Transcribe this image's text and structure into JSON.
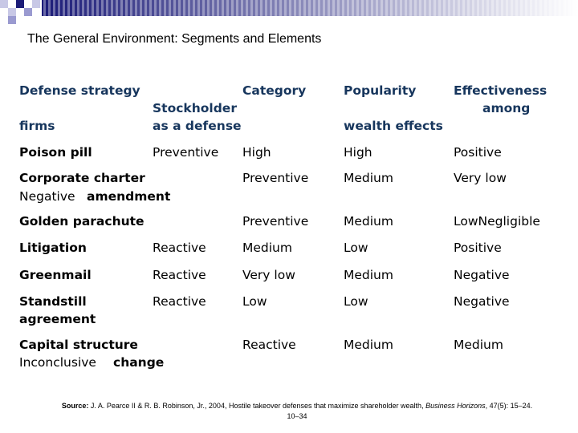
{
  "header": {
    "title": "The General Environment: Segments and Elements"
  },
  "table": {
    "head": {
      "defense_strategy": "Defense strategy",
      "category": "Category",
      "popularity": "Popularity",
      "effectiveness": "Effectiveness",
      "among": "among",
      "stockholder": "Stockholder",
      "as_a_defense": "as a defense",
      "firms": "firms",
      "wealth_effects": "wealth effects"
    },
    "rows": [
      [
        "Poison pill",
        "Preventive",
        "High",
        "High",
        "Positive"
      ],
      [
        "Corporate charter",
        "Negative",
        "amendment",
        "Preventive",
        "Medium",
        "Very low"
      ],
      [
        "Golden parachute",
        "Preventive",
        "Medium",
        "LowNegligible"
      ],
      [
        "Litigation",
        "Reactive",
        "Medium",
        "Low",
        "Positive"
      ],
      [
        "Greenmail",
        "Reactive",
        "Very low",
        "Medium",
        "Negative"
      ],
      [
        "Standstill",
        "agreement",
        "Reactive",
        "Low",
        "Low",
        "Negative"
      ],
      [
        "Capital structure",
        "Inconclusive",
        "change",
        "Reactive",
        "Medium",
        "Medium"
      ]
    ]
  },
  "source": {
    "label": "Source:",
    "text": "J. A. Pearce II & R. B. Robinson, Jr., 2004, Hostile takeover defenses that maximize shareholder wealth,",
    "journal": "Business Horizons",
    "citation": ", 47(5): 15–24.",
    "page": "10–34"
  }
}
